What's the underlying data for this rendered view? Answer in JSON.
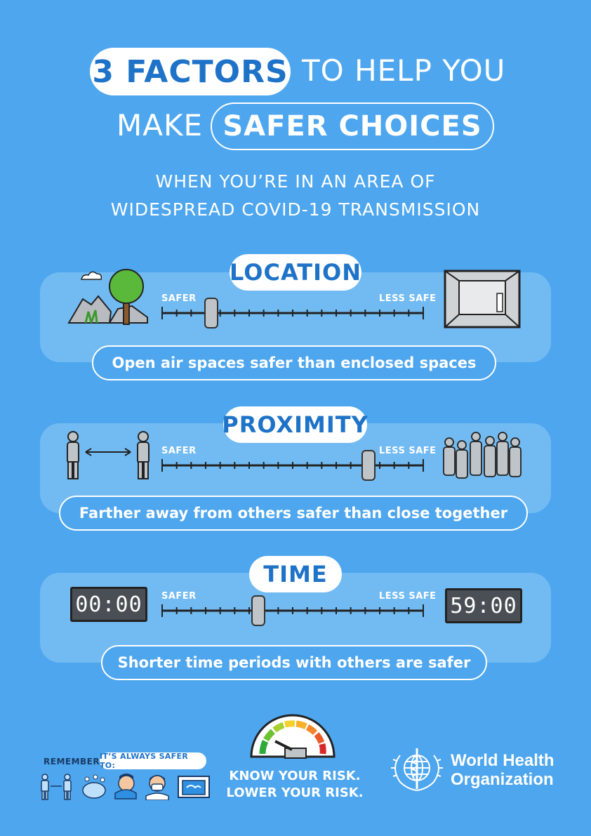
{
  "title": {
    "highlight": "3 FACTORS",
    "line1_rest": "TO HELP YOU",
    "line2_lead": "MAKE",
    "line2_highlight": "SAFER CHOICES"
  },
  "subtitle": {
    "line1": "WHEN YOU’RE IN AN AREA OF",
    "line2": "WIDESPREAD COVID-19 TRANSMISSION"
  },
  "factors": [
    {
      "name": "LOCATION",
      "safer_label": "SAFER",
      "less_safe_label": "LESS SAFE",
      "level": 0.19,
      "caption": "Open air spaces safer than enclosed spaces",
      "left_icon": "outdoor-landscape-icon",
      "right_icon": "enclosed-room-icon"
    },
    {
      "name": "PROXIMITY",
      "safer_label": "SAFER",
      "less_safe_label": "LESS SAFE",
      "level": 0.79,
      "caption": "Farther away from others safer than close together",
      "left_icon": "two-people-apart-icon",
      "right_icon": "crowd-icon"
    },
    {
      "name": "TIME",
      "safer_label": "SAFER",
      "less_safe_label": "LESS SAFE",
      "level": 0.37,
      "caption": "Shorter time periods with others are safer",
      "left_clock": "00:00",
      "right_clock": "59:00"
    }
  ],
  "footer": {
    "remember": "REMEMBER,",
    "always_safer": "IT’S ALWAYS SAFER TO:",
    "tips_icons": [
      "distance-icon",
      "handwash-icon",
      "cough-elbow-icon",
      "mask-icon",
      "open-window-icon"
    ],
    "know_line1": "KNOW YOUR RISK.",
    "know_line2": "LOWER YOUR RISK.",
    "org_line1": "World Health",
    "org_line2": "Organization"
  },
  "colors": {
    "background": "#4da6ee",
    "panel": "#72bbf2",
    "accent_blue": "#1e73c8"
  }
}
